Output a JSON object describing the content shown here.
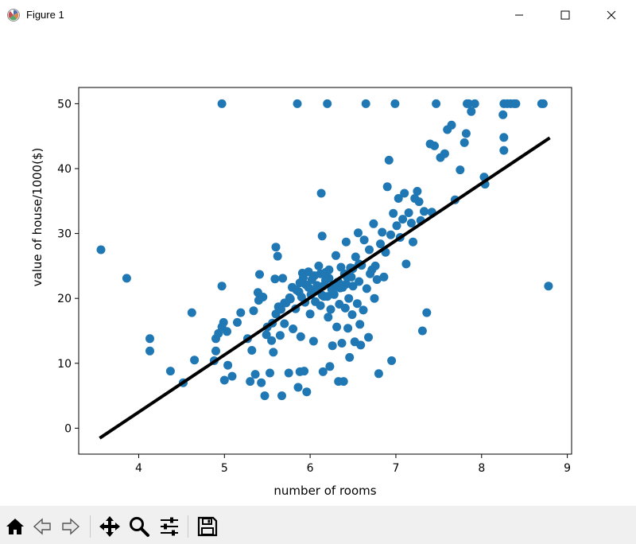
{
  "window": {
    "title": "Figure 1"
  },
  "icons": {
    "app": "matplotlib-figure-icon",
    "minimize": "minimize-icon",
    "maximize": "maximize-icon",
    "close": "close-icon",
    "toolbar": [
      "home-icon",
      "back-arrow-icon",
      "forward-arrow-icon",
      "pan-move-icon",
      "zoom-magnifier-icon",
      "configure-subplots-icon",
      "save-floppy-icon"
    ]
  },
  "colors": {
    "points": "#1f77b4",
    "regression_line": "#000000"
  },
  "chart_data": {
    "type": "scatter",
    "title": "",
    "xlabel": "number of rooms",
    "ylabel": "value of house/1000($)",
    "xlim": [
      3.3,
      9.05
    ],
    "ylim": [
      -4,
      52.5
    ],
    "xticks": [
      4,
      5,
      6,
      7,
      8,
      9
    ],
    "yticks": [
      0,
      10,
      20,
      30,
      40,
      50
    ],
    "grid": false,
    "series": [
      {
        "kind": "scatter",
        "color": "#1f77b4",
        "points": [
          [
            3.56,
            27.5
          ],
          [
            3.86,
            23.1
          ],
          [
            4.13,
            13.8
          ],
          [
            4.13,
            11.9
          ],
          [
            4.37,
            8.8
          ],
          [
            4.52,
            7.0
          ],
          [
            4.62,
            17.8
          ],
          [
            4.65,
            10.5
          ],
          [
            4.88,
            10.4
          ],
          [
            4.9,
            11.9
          ],
          [
            4.9,
            13.8
          ],
          [
            4.93,
            14.6
          ],
          [
            4.97,
            50.0
          ],
          [
            4.97,
            21.9
          ],
          [
            4.97,
            15.6
          ],
          [
            4.99,
            16.3
          ],
          [
            5.0,
            7.4
          ],
          [
            5.03,
            14.9
          ],
          [
            5.04,
            9.7
          ],
          [
            5.09,
            8.0
          ],
          [
            5.15,
            16.3
          ],
          [
            5.19,
            17.8
          ],
          [
            5.27,
            13.8
          ],
          [
            5.3,
            7.2
          ],
          [
            5.32,
            12.0
          ],
          [
            5.34,
            18.1
          ],
          [
            5.36,
            8.3
          ],
          [
            5.39,
            20.9
          ],
          [
            5.4,
            19.7
          ],
          [
            5.41,
            23.7
          ],
          [
            5.43,
            7.0
          ],
          [
            5.45,
            20.2
          ],
          [
            5.47,
            5.0
          ],
          [
            5.49,
            14.4
          ],
          [
            5.5,
            15.6
          ],
          [
            5.53,
            8.5
          ],
          [
            5.55,
            13.5
          ],
          [
            5.57,
            11.7
          ],
          [
            5.59,
            23.0
          ],
          [
            5.6,
            27.9
          ],
          [
            5.62,
            26.5
          ],
          [
            5.63,
            18.7
          ],
          [
            5.65,
            14.3
          ],
          [
            5.67,
            5.0
          ],
          [
            5.68,
            23.1
          ],
          [
            5.7,
            16.1
          ],
          [
            5.72,
            19.3
          ],
          [
            5.75,
            8.5
          ],
          [
            5.77,
            19.9
          ],
          [
            5.79,
            21.7
          ],
          [
            5.8,
            15.3
          ],
          [
            5.83,
            18.4
          ],
          [
            5.85,
            50.0
          ],
          [
            5.86,
            6.3
          ],
          [
            5.87,
            21.0
          ],
          [
            5.88,
            8.7
          ],
          [
            5.89,
            14.1
          ],
          [
            5.9,
            20.2
          ],
          [
            5.91,
            23.9
          ],
          [
            5.93,
            8.8
          ],
          [
            5.94,
            19.4
          ],
          [
            5.96,
            5.6
          ],
          [
            5.98,
            24.1
          ],
          [
            6.0,
            17.6
          ],
          [
            6.02,
            21.2
          ],
          [
            6.04,
            13.4
          ],
          [
            6.06,
            19.5
          ],
          [
            6.08,
            22.0
          ],
          [
            6.1,
            25.0
          ],
          [
            6.12,
            18.9
          ],
          [
            6.13,
            36.2
          ],
          [
            6.14,
            29.6
          ],
          [
            6.15,
            8.7
          ],
          [
            6.16,
            20.3
          ],
          [
            6.18,
            22.8
          ],
          [
            6.2,
            50.0
          ],
          [
            6.21,
            17.1
          ],
          [
            6.22,
            24.4
          ],
          [
            6.23,
            9.5
          ],
          [
            6.24,
            18.3
          ],
          [
            6.25,
            21.4
          ],
          [
            6.26,
            12.7
          ],
          [
            6.28,
            20.6
          ],
          [
            6.3,
            26.6
          ],
          [
            6.31,
            15.6
          ],
          [
            6.32,
            22.5
          ],
          [
            6.33,
            7.2
          ],
          [
            6.34,
            19.1
          ],
          [
            6.36,
            24.8
          ],
          [
            6.37,
            13.1
          ],
          [
            6.38,
            21.7
          ],
          [
            6.39,
            7.2
          ],
          [
            6.41,
            18.5
          ],
          [
            6.42,
            28.7
          ],
          [
            6.43,
            23.3
          ],
          [
            6.44,
            15.4
          ],
          [
            6.45,
            20.0
          ],
          [
            6.46,
            10.9
          ],
          [
            6.47,
            24.7
          ],
          [
            6.49,
            17.5
          ],
          [
            6.5,
            21.9
          ],
          [
            6.52,
            13.3
          ],
          [
            6.53,
            26.4
          ],
          [
            6.55,
            19.2
          ],
          [
            6.56,
            30.1
          ],
          [
            6.57,
            22.6
          ],
          [
            6.58,
            16.0
          ],
          [
            6.59,
            12.8
          ],
          [
            6.6,
            25.1
          ],
          [
            6.62,
            18.2
          ],
          [
            6.63,
            29.0
          ],
          [
            6.65,
            50.0
          ],
          [
            6.66,
            21.5
          ],
          [
            6.68,
            14.0
          ],
          [
            6.69,
            27.5
          ],
          [
            6.7,
            23.8
          ],
          [
            6.72,
            24.4
          ],
          [
            6.74,
            31.5
          ],
          [
            6.75,
            20.0
          ],
          [
            6.76,
            25.0
          ],
          [
            6.78,
            22.9
          ],
          [
            6.8,
            8.4
          ],
          [
            6.82,
            28.4
          ],
          [
            6.84,
            30.2
          ],
          [
            6.86,
            23.3
          ],
          [
            6.88,
            27.1
          ],
          [
            6.9,
            37.2
          ],
          [
            6.92,
            41.3
          ],
          [
            6.94,
            29.8
          ],
          [
            6.95,
            10.4
          ],
          [
            6.97,
            33.1
          ],
          [
            6.99,
            50.0
          ],
          [
            7.01,
            31.2
          ],
          [
            7.03,
            35.4
          ],
          [
            7.05,
            29.4
          ],
          [
            7.08,
            32.2
          ],
          [
            7.1,
            36.2
          ],
          [
            7.12,
            25.3
          ],
          [
            7.15,
            33.2
          ],
          [
            7.18,
            31.6
          ],
          [
            7.2,
            28.7
          ],
          [
            7.22,
            35.4
          ],
          [
            7.25,
            36.5
          ],
          [
            7.27,
            34.9
          ],
          [
            7.29,
            32.0
          ],
          [
            7.31,
            15.0
          ],
          [
            7.33,
            33.4
          ],
          [
            7.36,
            17.8
          ],
          [
            7.4,
            43.8
          ],
          [
            7.42,
            33.3
          ],
          [
            7.45,
            43.5
          ],
          [
            7.47,
            50.0
          ],
          [
            7.52,
            41.7
          ],
          [
            7.57,
            42.3
          ],
          [
            7.6,
            46.0
          ],
          [
            7.65,
            46.7
          ],
          [
            7.69,
            35.2
          ],
          [
            7.75,
            39.8
          ],
          [
            7.8,
            44.0
          ],
          [
            7.82,
            45.4
          ],
          [
            7.83,
            50.0
          ],
          [
            7.85,
            50.0
          ],
          [
            7.88,
            48.8
          ],
          [
            7.92,
            50.0
          ],
          [
            8.03,
            38.7
          ],
          [
            8.04,
            37.6
          ],
          [
            8.25,
            48.3
          ],
          [
            8.26,
            50.0
          ],
          [
            8.26,
            44.8
          ],
          [
            8.26,
            42.8
          ],
          [
            8.3,
            50.0
          ],
          [
            8.34,
            50.0
          ],
          [
            8.38,
            50.0
          ],
          [
            8.4,
            50.0
          ],
          [
            8.7,
            50.0
          ],
          [
            8.72,
            50.0
          ],
          [
            8.78,
            21.9
          ],
          [
            6.05,
            23.5
          ],
          [
            6.12,
            23.8
          ],
          [
            6.18,
            24.0
          ],
          [
            5.95,
            22.1
          ],
          [
            5.98,
            21.7
          ],
          [
            6.02,
            22.9
          ],
          [
            6.15,
            21.9
          ],
          [
            6.22,
            23.1
          ],
          [
            6.28,
            22.0
          ],
          [
            6.35,
            21.6
          ],
          [
            6.42,
            22.2
          ],
          [
            6.48,
            23.3
          ],
          [
            6.01,
            20.6
          ],
          [
            6.07,
            21.2
          ],
          [
            6.14,
            20.5
          ],
          [
            6.2,
            20.3
          ],
          [
            6.26,
            21.1
          ],
          [
            6.33,
            22.5
          ],
          [
            6.4,
            23.8
          ],
          [
            6.5,
            24.6
          ],
          [
            6.57,
            25.3
          ],
          [
            5.92,
            23.2
          ],
          [
            5.88,
            22.4
          ],
          [
            5.84,
            21.3
          ],
          [
            5.76,
            20.1
          ],
          [
            5.7,
            19.3
          ],
          [
            5.66,
            18.3
          ],
          [
            5.6,
            17.6
          ],
          [
            5.56,
            16.2
          ]
        ]
      },
      {
        "kind": "line",
        "name": "",
        "color": "#000000",
        "x": [
          3.56,
          8.78
        ],
        "y": [
          -1.4,
          44.6
        ]
      }
    ]
  }
}
